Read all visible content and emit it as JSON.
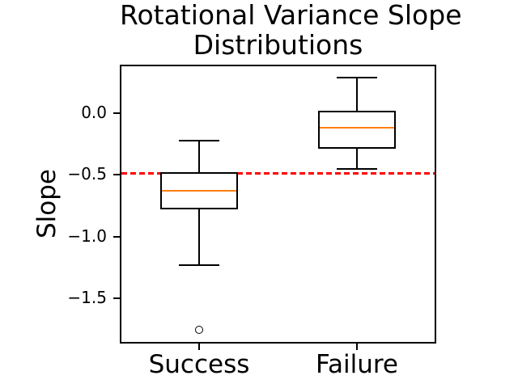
{
  "figure": {
    "title_lines": [
      "Rotational Variance Slope",
      "Distributions"
    ],
    "ylabel": "Slope"
  },
  "chart_data": {
    "type": "boxplot",
    "title": "Rotational Variance Slope Distributions",
    "ylabel": "Slope",
    "xlabel": "",
    "categories": [
      "Success",
      "Failure"
    ],
    "boxes": [
      {
        "category": "Success",
        "whisker_low": -1.23,
        "q1": -0.78,
        "median": -0.63,
        "q3": -0.48,
        "whisker_high": -0.22,
        "outliers": [
          -1.75
        ]
      },
      {
        "category": "Failure",
        "whisker_low": -0.45,
        "q1": -0.29,
        "median": -0.12,
        "q3": 0.02,
        "whisker_high": 0.29,
        "outliers": []
      }
    ],
    "reference_line": {
      "value": -0.485,
      "style": "dashed",
      "color": "#ff0000"
    },
    "yticks": [
      0.0,
      -0.5,
      -1.0,
      -1.5
    ],
    "ytick_labels": [
      "0.0",
      "−0.5",
      "−1.0",
      "−1.5"
    ],
    "ylim": [
      -1.863,
      0.392
    ],
    "grid": false,
    "legend_position": "none",
    "box_color": "#000000",
    "median_color": "#ff7f0e",
    "background_color": "#ffffff"
  }
}
